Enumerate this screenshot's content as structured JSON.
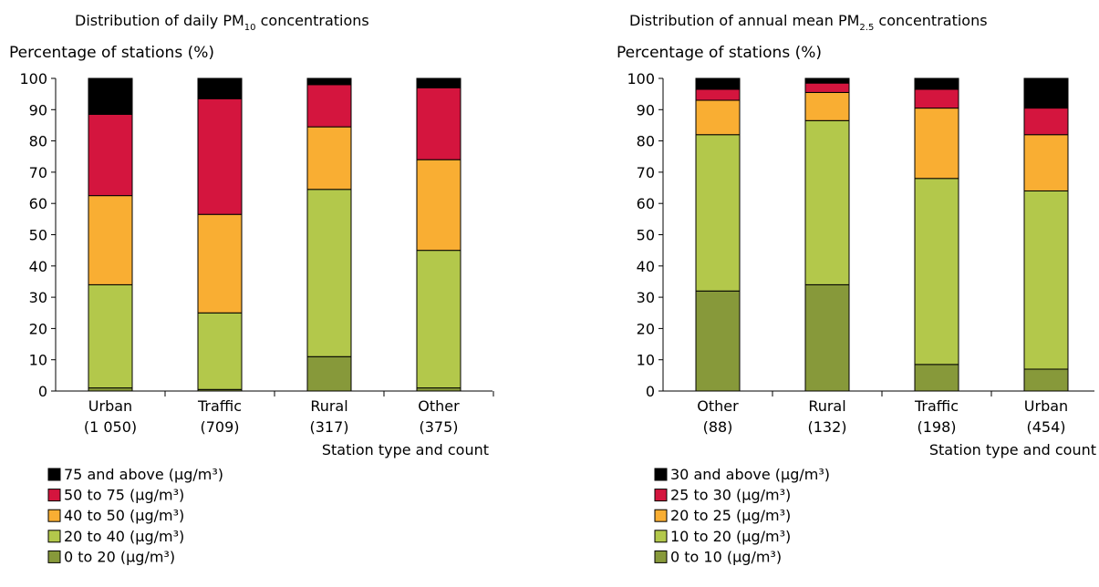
{
  "chart_data": [
    {
      "type": "bar",
      "stacked": true,
      "title_main": "Distribution of daily PM",
      "title_sub": "10",
      "title_end": " concentrations",
      "ylabel": "Percentage of stations (%)",
      "xlabel": "Station type and count",
      "ylim": [
        0,
        100
      ],
      "yticks": [
        "0",
        "10",
        "20",
        "30",
        "40",
        "50",
        "60",
        "70",
        "80",
        "90",
        "100"
      ],
      "categories": [
        "Urban",
        "Traffic",
        "Rural",
        "Other"
      ],
      "category_counts": [
        "(1 050)",
        "(709)",
        "(317)",
        "(375)"
      ],
      "series": [
        {
          "name": "0 to 20",
          "unit": "(µg/m³)",
          "color": "#87993a",
          "values": [
            1,
            0.5,
            11,
            1
          ]
        },
        {
          "name": "20 to 40",
          "unit": "(µg/m³)",
          "color": "#b3c84b",
          "values": [
            33,
            24.5,
            53.5,
            44
          ]
        },
        {
          "name": "40 to 50",
          "unit": "(µg/m³)",
          "color": "#f9ae33",
          "values": [
            28.5,
            31.5,
            20,
            29
          ]
        },
        {
          "name": "50 to 75",
          "unit": "(µg/m³)",
          "color": "#d4153e",
          "values": [
            26,
            37,
            13.5,
            23
          ]
        },
        {
          "name": "75 and above",
          "unit": "(µg/m³)",
          "color": "#000000",
          "values": [
            11.5,
            6.5,
            2,
            3
          ]
        }
      ]
    },
    {
      "type": "bar",
      "stacked": true,
      "title_main": "Distribution of annual mean PM",
      "title_sub": "2.5",
      "title_end": " concentrations",
      "ylabel": "Percentage of stations (%)",
      "xlabel": "Station type and count",
      "ylim": [
        0,
        100
      ],
      "yticks": [
        "0",
        "10",
        "20",
        "30",
        "40",
        "50",
        "60",
        "70",
        "80",
        "90",
        "100"
      ],
      "categories": [
        "Other",
        "Rural",
        "Traffic",
        "Urban"
      ],
      "category_counts": [
        "(88)",
        "(132)",
        "(198)",
        "(454)"
      ],
      "series": [
        {
          "name": "0 to 10",
          "unit": "(µg/m³)",
          "color": "#87993a",
          "values": [
            32,
            34,
            8.5,
            7
          ]
        },
        {
          "name": "10 to 20",
          "unit": "(µg/m³)",
          "color": "#b3c84b",
          "values": [
            50,
            52.5,
            59.5,
            57
          ]
        },
        {
          "name": "20 to 25",
          "unit": "(µg/m³)",
          "color": "#f9ae33",
          "values": [
            11,
            9,
            22.5,
            18
          ]
        },
        {
          "name": "25 to 30",
          "unit": "(µg/m³)",
          "color": "#d4153e",
          "values": [
            3.5,
            3,
            6,
            8.5
          ]
        },
        {
          "name": "30 and above",
          "unit": "(µg/m³)",
          "color": "#000000",
          "values": [
            3.5,
            1.5,
            3.5,
            9.5
          ]
        }
      ]
    }
  ]
}
